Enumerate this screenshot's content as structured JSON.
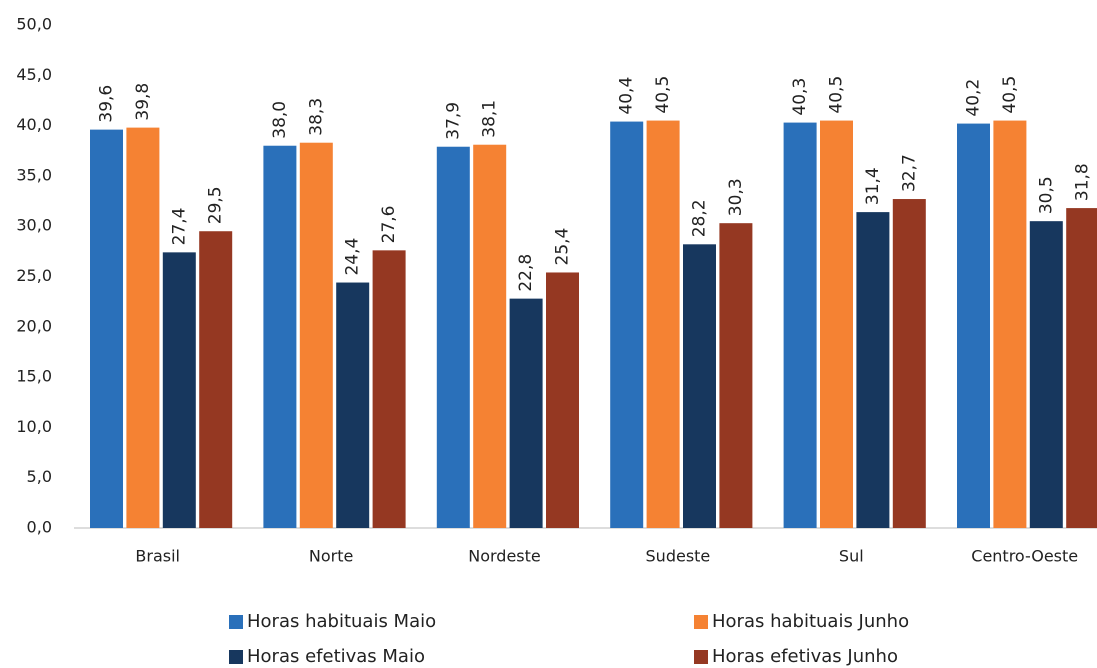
{
  "chart_data": {
    "type": "bar",
    "categories": [
      "Brasil",
      "Norte",
      "Nordeste",
      "Sudeste",
      "Sul",
      "Centro-Oeste"
    ],
    "series": [
      {
        "name": "Horas habituais Maio",
        "color": "#2a70ba",
        "values": [
          39.6,
          38.0,
          37.9,
          40.4,
          40.3,
          40.2
        ],
        "value_labels": [
          "39,6",
          "38,0",
          "37,9",
          "40,4",
          "40,3",
          "40,2"
        ]
      },
      {
        "name": "Horas habituais Junho",
        "color": "#f58233",
        "values": [
          39.8,
          38.3,
          38.1,
          40.5,
          40.5,
          40.5
        ],
        "value_labels": [
          "39,8",
          "38,3",
          "38,1",
          "40,5",
          "40,5",
          "40,5"
        ]
      },
      {
        "name": "Horas efetivas Maio",
        "color": "#17375e",
        "values": [
          27.4,
          24.4,
          22.8,
          28.2,
          31.4,
          30.5
        ],
        "value_labels": [
          "27,4",
          "24,4",
          "22,8",
          "28,2",
          "31,4",
          "30,5"
        ]
      },
      {
        "name": "Horas efetivas Junho",
        "color": "#953822",
        "values": [
          29.5,
          27.6,
          25.4,
          30.3,
          32.7,
          31.8
        ],
        "value_labels": [
          "29,5",
          "27,6",
          "25,4",
          "30,3",
          "32,7",
          "31,8"
        ]
      }
    ],
    "ylim": [
      0,
      50
    ],
    "yticks": [
      {
        "value": 0,
        "label": "0,0"
      },
      {
        "value": 5,
        "label": "5,0"
      },
      {
        "value": 10,
        "label": "10,0"
      },
      {
        "value": 15,
        "label": "15,0"
      },
      {
        "value": 20,
        "label": "20,0"
      },
      {
        "value": 25,
        "label": "25,0"
      },
      {
        "value": 30,
        "label": "30,0"
      },
      {
        "value": 35,
        "label": "35,0"
      },
      {
        "value": 40,
        "label": "40,0"
      },
      {
        "value": 45,
        "label": "45,0"
      },
      {
        "value": 50,
        "label": "50,0"
      }
    ],
    "grid": false,
    "legend": "bottom"
  }
}
